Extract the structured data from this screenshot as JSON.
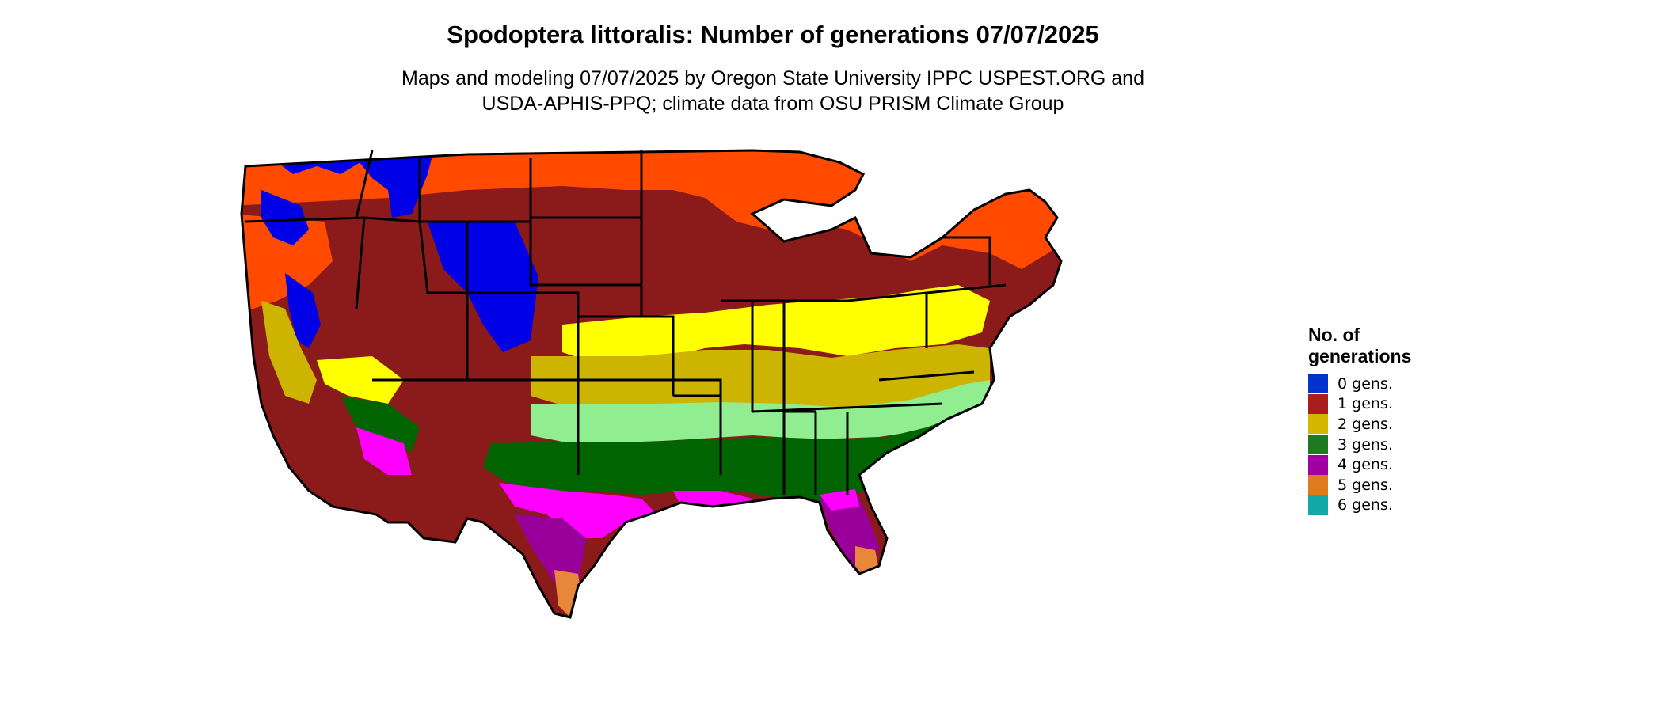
{
  "title": "Spodoptera littoralis: Number of generations 07/07/2025",
  "subtitle": {
    "line1": "Maps and modeling 07/07/2025 by Oregon State University IPPC USPEST.ORG and",
    "line2": "USDA-APHIS-PPQ; climate data from OSU PRISM Climate Group"
  },
  "legend": {
    "title": "No. of generations",
    "items": [
      {
        "label": "0 gens.",
        "color": "#0033cc"
      },
      {
        "label": "1 gens.",
        "color": "#a81e1e"
      },
      {
        "label": "2 gens.",
        "color": "#d4b800"
      },
      {
        "label": "3 gens.",
        "color": "#1f7a1f"
      },
      {
        "label": "4 gens.",
        "color": "#a300a3"
      },
      {
        "label": "5 gens.",
        "color": "#e07a1f"
      },
      {
        "label": "6 gens.",
        "color": "#12a8a8"
      }
    ]
  },
  "map": {
    "region": "Contiguous United States",
    "palette": {
      "zero": "#0000e6",
      "one_light": "#ff4a00",
      "one_dark": "#8b1a1a",
      "two_light": "#ffff00",
      "two_dark": "#cdb400",
      "three_light": "#90ee90",
      "three_dark": "#006400",
      "four_light": "#ff00ff",
      "four_dark": "#990099",
      "five": "#e8873a"
    }
  }
}
